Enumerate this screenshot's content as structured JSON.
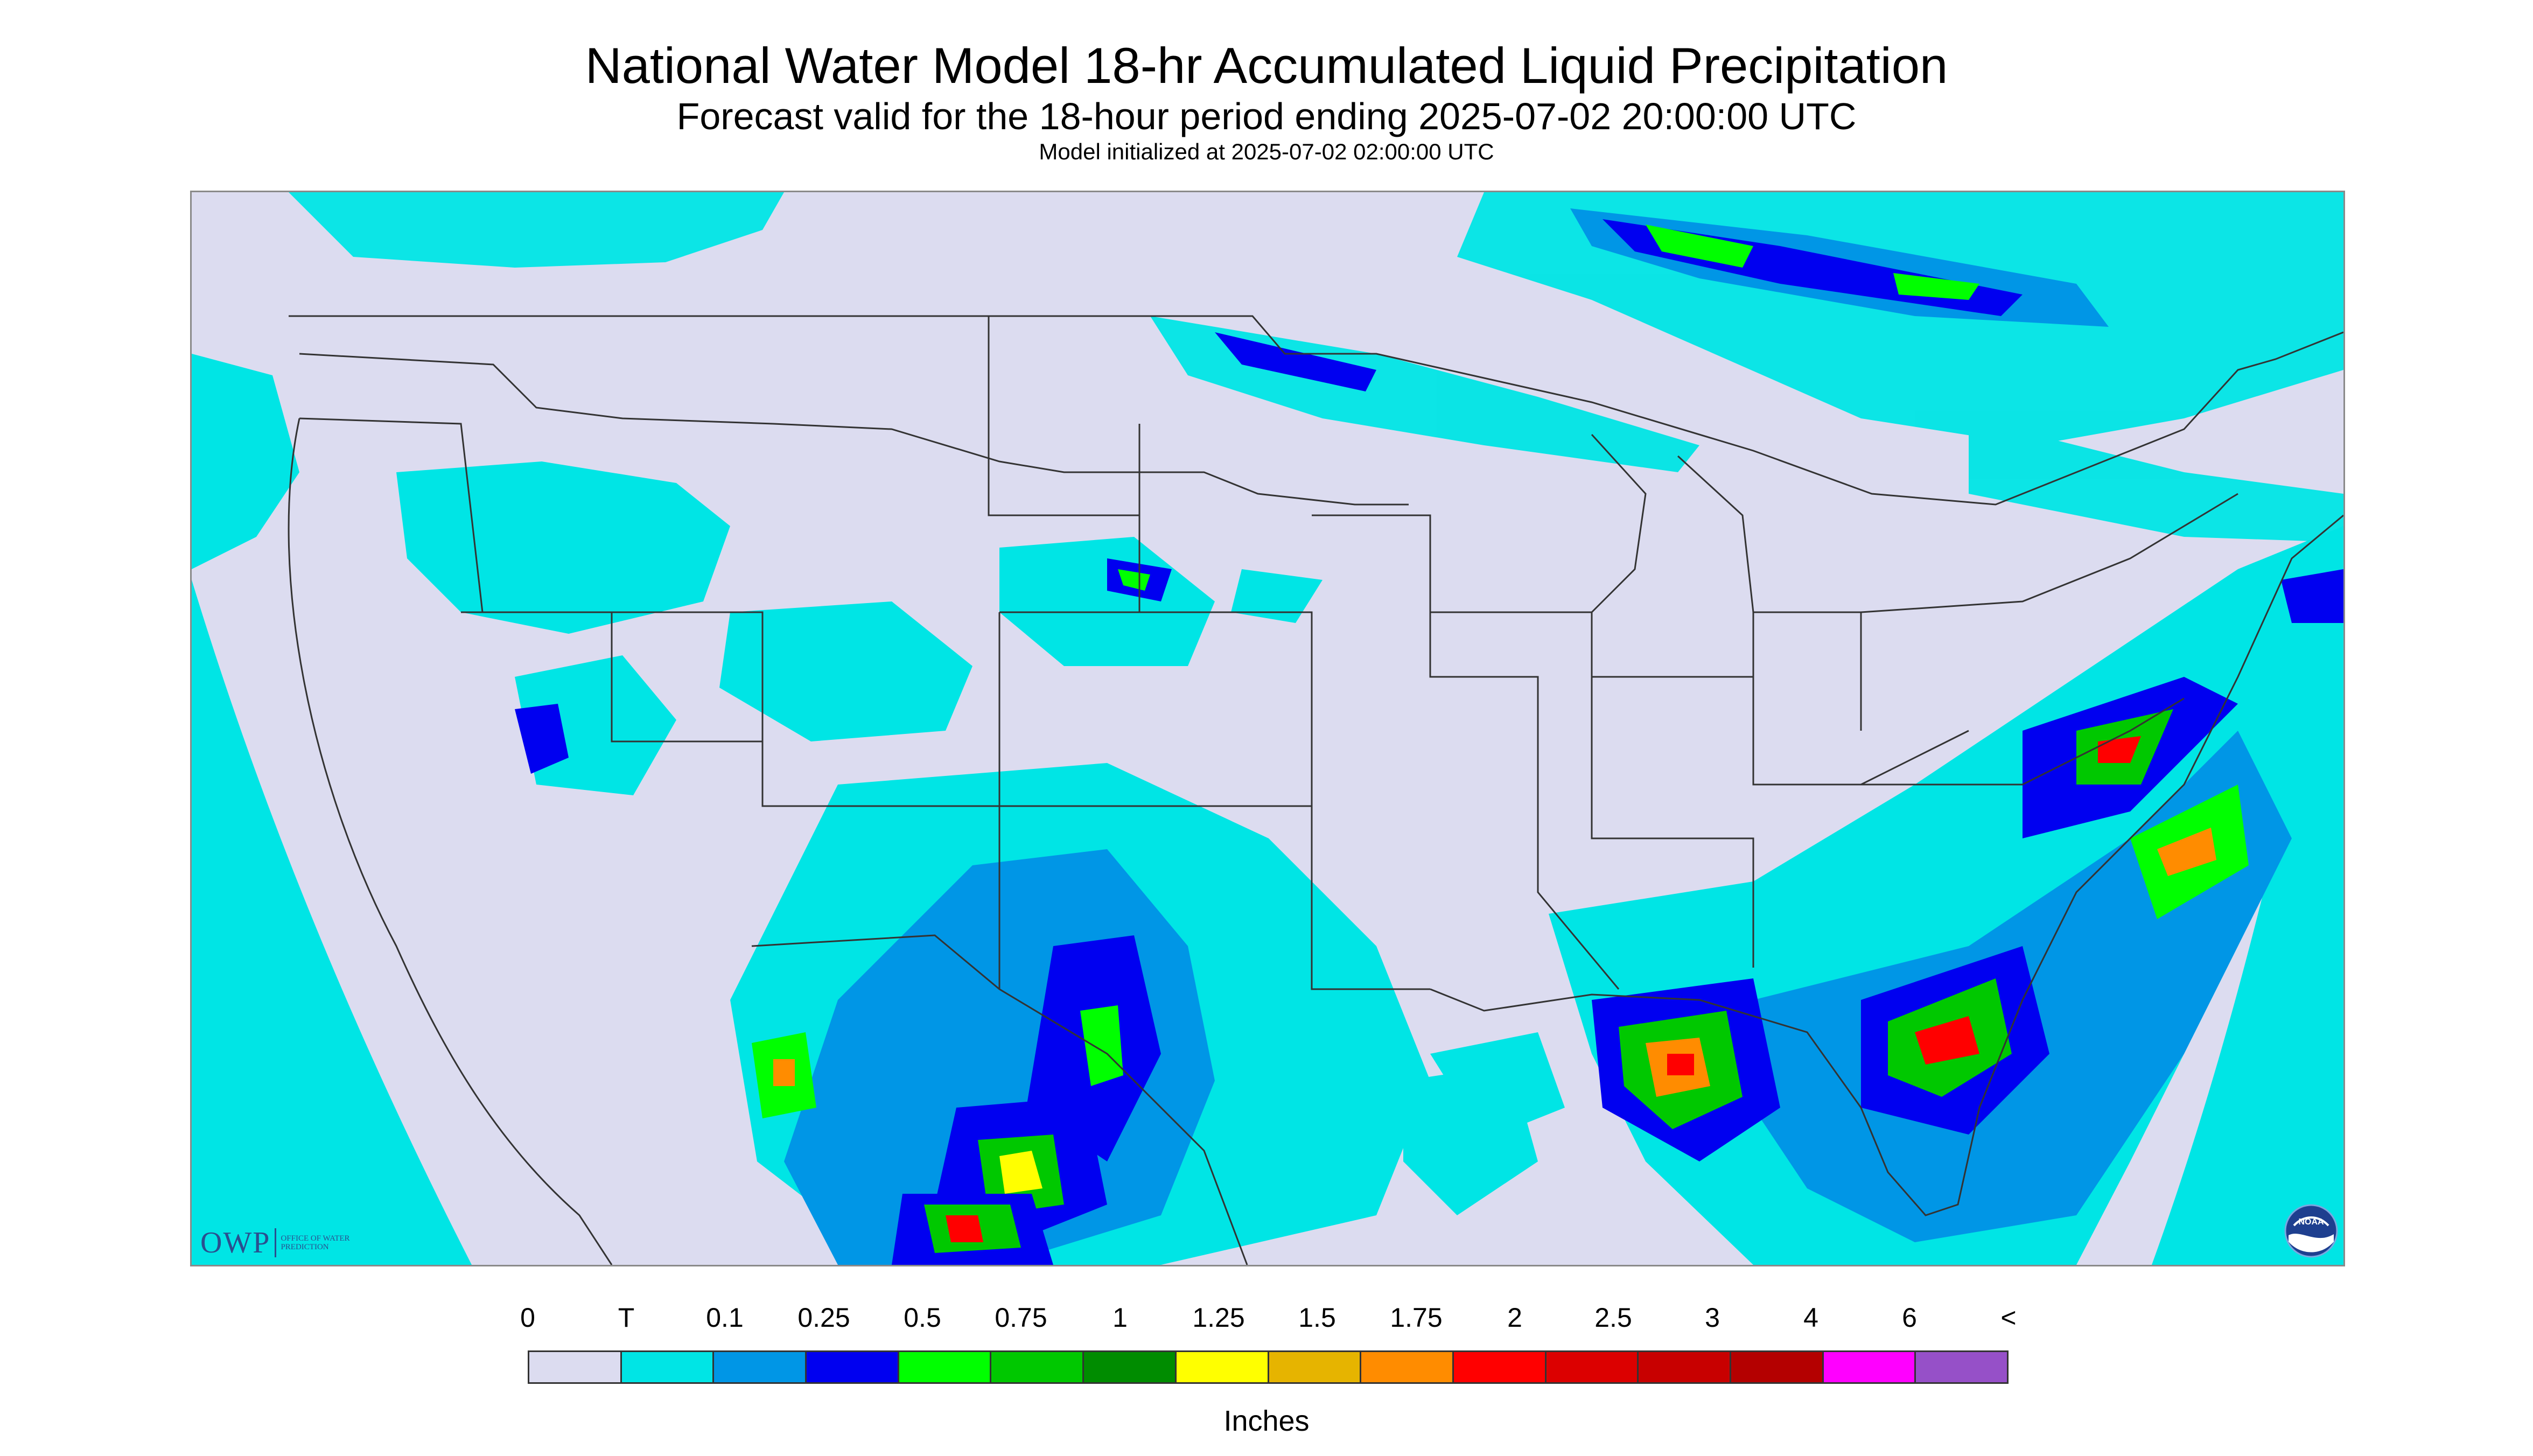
{
  "header": {
    "title": "National Water Model 18-hr Accumulated Liquid Precipitation",
    "subtitle": "Forecast valid for the 18-hour period ending 2025-07-02 20:00:00 UTC",
    "model_init": "Model initialized at 2025-07-02 02:00:00 UTC"
  },
  "legend": {
    "labels": [
      "0",
      "T",
      "0.1",
      "0.25",
      "0.5",
      "0.75",
      "1",
      "1.25",
      "1.5",
      "1.75",
      "2",
      "2.5",
      "3",
      "4",
      "6",
      "<"
    ],
    "colors": [
      "#dcdcf0",
      "#00e5e5",
      "#0096e6",
      "#0000f0",
      "#00ff00",
      "#00c800",
      "#008c00",
      "#ffff00",
      "#e6b400",
      "#ff8c00",
      "#ff0000",
      "#dc0000",
      "#c80000",
      "#b40000",
      "#ff00ff",
      "#9650c8"
    ],
    "units": "Inches"
  },
  "logos": {
    "owp": "OWP",
    "owp_sub": "OFFICE OF WATER PREDICTION",
    "noaa": "NOAA"
  },
  "map": {
    "region": "CONUS",
    "background_color": "#dcdcf0",
    "outside_domain_color": "#00e5e5",
    "boundary_color": "#333333"
  }
}
